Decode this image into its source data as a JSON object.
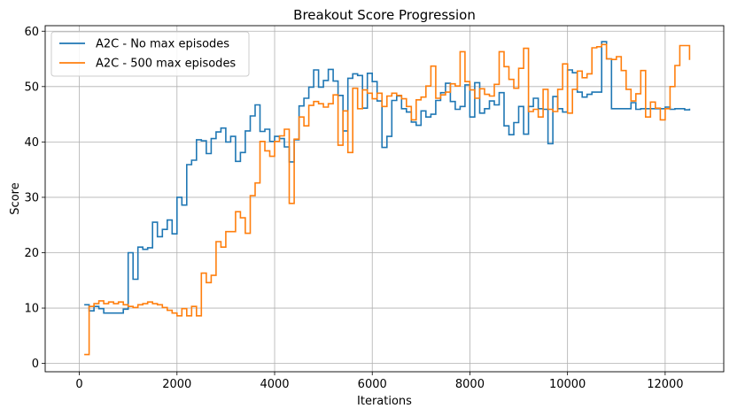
{
  "chart_data": {
    "type": "line",
    "step": true,
    "title": "Breakout Score Progression",
    "xlabel": "Iterations",
    "ylabel": "Score",
    "xlim": [
      -700,
      13200
    ],
    "ylim": [
      -1.5,
      61
    ],
    "xticks": [
      0,
      2000,
      4000,
      6000,
      8000,
      10000,
      12000
    ],
    "yticks": [
      0,
      10,
      20,
      30,
      40,
      50,
      60
    ],
    "grid": true,
    "legend_position": "top-left",
    "series": [
      {
        "name": "A2C - No max episodes",
        "color": "#1f77b4",
        "x": [
          100,
          200,
          300,
          400,
          500,
          600,
          700,
          800,
          900,
          1000,
          1100,
          1200,
          1300,
          1400,
          1500,
          1600,
          1700,
          1800,
          1900,
          2000,
          2100,
          2200,
          2300,
          2400,
          2500,
          2600,
          2700,
          2800,
          2900,
          3000,
          3100,
          3200,
          3300,
          3400,
          3500,
          3600,
          3700,
          3800,
          3900,
          4000,
          4100,
          4200,
          4300,
          4400,
          4500,
          4600,
          4700,
          4800,
          4900,
          5000,
          5100,
          5200,
          5300,
          5400,
          5500,
          5600,
          5700,
          5800,
          5900,
          6000,
          6100,
          6200,
          6300,
          6400,
          6500,
          6600,
          6700,
          6800,
          6900,
          7000,
          7100,
          7200,
          7300,
          7400,
          7500,
          7600,
          7700,
          7800,
          7900,
          8000,
          8100,
          8200,
          8300,
          8400,
          8500,
          8600,
          8700,
          8800,
          8900,
          9000,
          9100,
          9200,
          9300,
          9400,
          9500,
          9600,
          9700,
          9800,
          9900,
          10000,
          10100,
          10200,
          10300,
          10400,
          10500,
          10600,
          10700,
          10800,
          10900,
          11000,
          11100,
          11200,
          11300,
          11400,
          11500,
          11600,
          11700,
          11800,
          11900,
          12000,
          12100,
          12200,
          12300,
          12400,
          12500
        ],
        "y": [
          10.6,
          9.5,
          10.3,
          9.9,
          9.1,
          9.1,
          9.1,
          9.1,
          9.8,
          20,
          15.2,
          21,
          20.6,
          20.9,
          25.5,
          22.9,
          24.2,
          25.9,
          23.4,
          30,
          28.6,
          35.9,
          36.7,
          40.4,
          40.2,
          37.9,
          40.6,
          41.8,
          42.5,
          40,
          41,
          36.5,
          38.1,
          42,
          44.7,
          46.7,
          41.9,
          42.3,
          40.1,
          41,
          40.6,
          39.1,
          36.4,
          40.4,
          46.5,
          47.9,
          49.9,
          53,
          49.9,
          51.1,
          53.1,
          51,
          48.4,
          42,
          51.5,
          52.3,
          52,
          46.1,
          52.4,
          50.9,
          47.4,
          39,
          41,
          47.5,
          48.3,
          46,
          45.4,
          43.6,
          43,
          45.6,
          44.5,
          45,
          47.5,
          48.9,
          50.6,
          47.3,
          45.9,
          46.4,
          50.3,
          44.5,
          50.7,
          45.2,
          46,
          47.4,
          46.7,
          48.9,
          42.9,
          41.3,
          43.5,
          46.4,
          41.4,
          46.4,
          47.9,
          46,
          45.9,
          39.7,
          48.2,
          46,
          45.4,
          53,
          52.5,
          49,
          48.1,
          48.6,
          49,
          49,
          58.1,
          55,
          46,
          46,
          46,
          46,
          47.1,
          45.9,
          46,
          46,
          46,
          46,
          46,
          46.3,
          45.9,
          46,
          46,
          45.8,
          46
        ]
      },
      {
        "name": "A2C - 500 max episodes",
        "color": "#ff7f0e",
        "x": [
          100,
          200,
          300,
          400,
          500,
          600,
          700,
          800,
          900,
          1000,
          1100,
          1200,
          1300,
          1400,
          1500,
          1600,
          1700,
          1800,
          1900,
          2000,
          2100,
          2200,
          2300,
          2400,
          2500,
          2600,
          2700,
          2800,
          2900,
          3000,
          3100,
          3200,
          3300,
          3400,
          3500,
          3600,
          3700,
          3800,
          3900,
          4000,
          4100,
          4200,
          4300,
          4400,
          4500,
          4600,
          4700,
          4800,
          4900,
          5000,
          5100,
          5200,
          5300,
          5400,
          5500,
          5600,
          5700,
          5800,
          5900,
          6000,
          6100,
          6200,
          6300,
          6400,
          6500,
          6600,
          6700,
          6800,
          6900,
          7000,
          7100,
          7200,
          7300,
          7400,
          7500,
          7600,
          7700,
          7800,
          7900,
          8000,
          8100,
          8200,
          8300,
          8400,
          8500,
          8600,
          8700,
          8800,
          8900,
          9000,
          9100,
          9200,
          9300,
          9400,
          9500,
          9600,
          9700,
          9800,
          9900,
          10000,
          10100,
          10200,
          10300,
          10400,
          10500,
          10600,
          10700,
          10800,
          10900,
          11000,
          11100,
          11200,
          11300,
          11400,
          11500,
          11600,
          11700,
          11800,
          11900,
          12000,
          12100,
          12200,
          12300,
          12400,
          12500
        ],
        "y": [
          1.6,
          10.3,
          10.8,
          11.3,
          10.8,
          11.1,
          10.8,
          11.1,
          10.6,
          10.3,
          10.1,
          10.6,
          10.8,
          11.1,
          10.8,
          10.6,
          10.1,
          9.6,
          9.1,
          8.6,
          9.9,
          8.6,
          10.3,
          8.6,
          16.3,
          14.6,
          15.9,
          22,
          21,
          23.8,
          23.8,
          27.4,
          26.3,
          23.5,
          30.3,
          32.6,
          40.1,
          38.4,
          37.4,
          40.1,
          41.1,
          42.3,
          28.9,
          40.5,
          44.5,
          42.9,
          46.6,
          47.3,
          46.9,
          46.3,
          46.9,
          48.5,
          39.4,
          45.6,
          38.1,
          49.7,
          46,
          49.4,
          48.8,
          47.8,
          48.8,
          46.4,
          48.3,
          48.8,
          48.4,
          47.8,
          46.4,
          44,
          47.6,
          48.1,
          50.1,
          53.7,
          47.9,
          48.5,
          49,
          50.5,
          50.1,
          56.3,
          50.9,
          49.4,
          47.9,
          49.6,
          48.6,
          48.3,
          50.4,
          56.3,
          53.6,
          51.3,
          49.7,
          53.3,
          56.9,
          45.5,
          45.9,
          44.5,
          49.5,
          45.9,
          45.5,
          49.5,
          54.1,
          45.2,
          49.5,
          52.8,
          51.6,
          52.3,
          57,
          57.2,
          57.6,
          55,
          54.9,
          55.4,
          52.9,
          49.5,
          47.4,
          48.7,
          52.9,
          44.5,
          47.2,
          46.1,
          44,
          46,
          50,
          53.8,
          57.4,
          57.4,
          54.8
        ]
      }
    ]
  }
}
